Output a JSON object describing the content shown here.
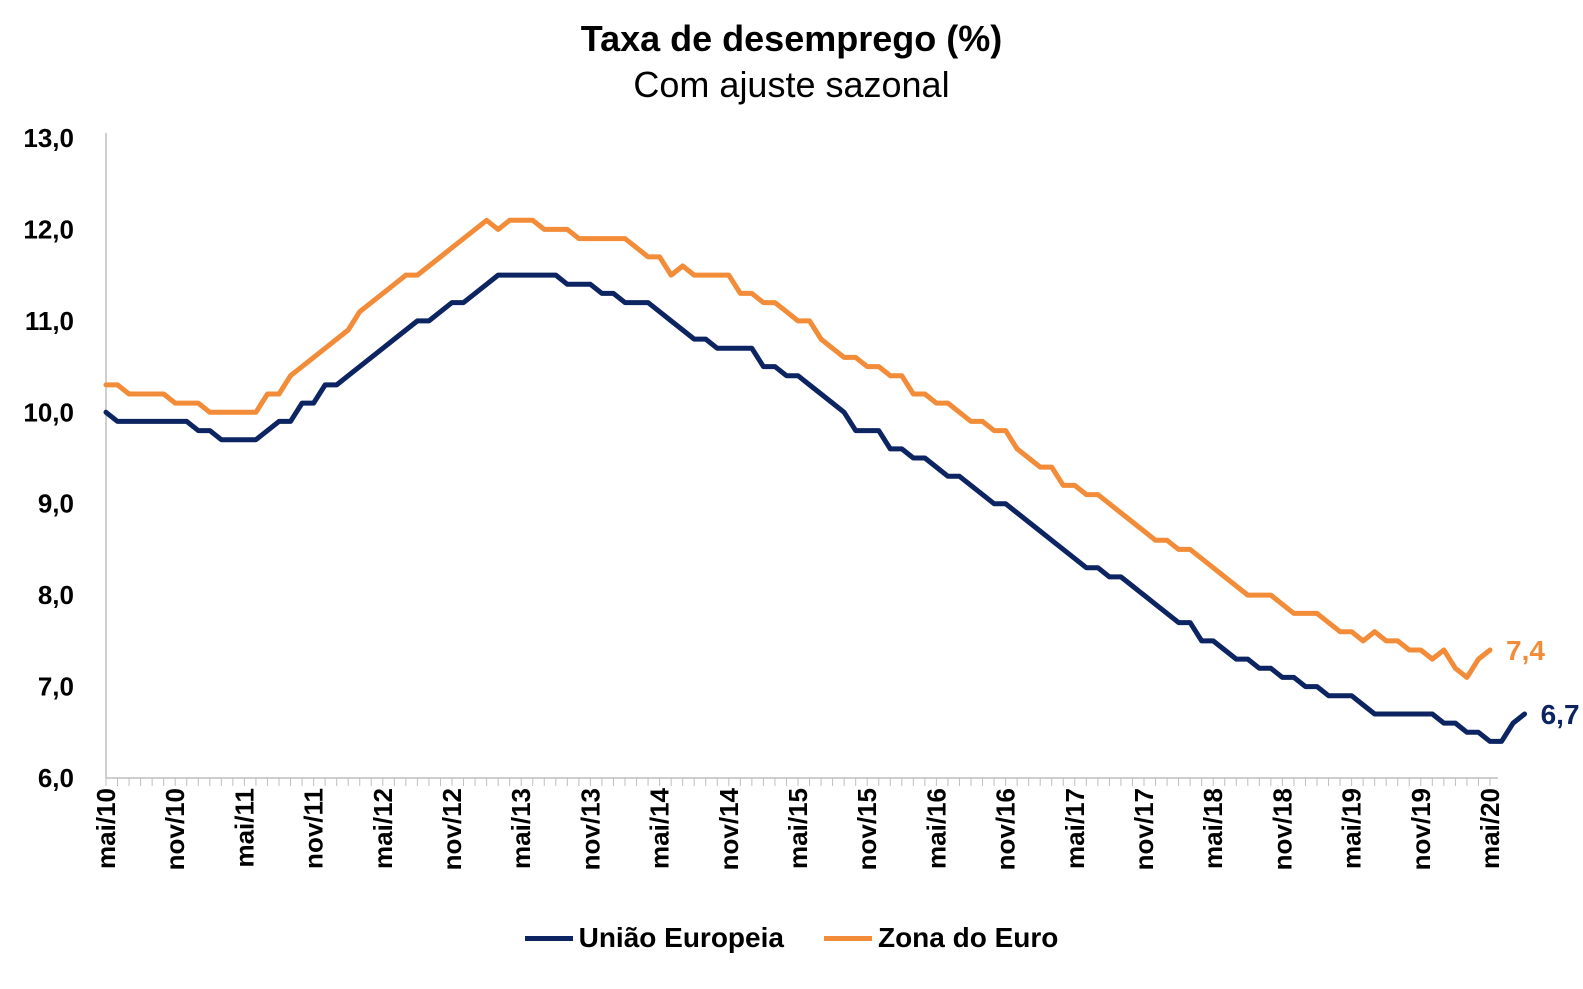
{
  "chart_data": {
    "type": "line",
    "title": "Taxa de desemprego (%)",
    "subtitle": "Com ajuste sazonal",
    "xlabel": "",
    "ylabel": "",
    "ylim": [
      6.0,
      13.0
    ],
    "y_ticks": [
      "13,0",
      "12,0",
      "11,0",
      "10,0",
      "9,0",
      "8,0",
      "7,0",
      "6,0"
    ],
    "y_tick_values": [
      13,
      12,
      11,
      10,
      9,
      8,
      7,
      6
    ],
    "x_ticks": [
      "mai/10",
      "nov/10",
      "mai/11",
      "nov/11",
      "mai/12",
      "nov/12",
      "mai/13",
      "nov/13",
      "mai/14",
      "nov/14",
      "mai/15",
      "nov/15",
      "mai/16",
      "nov/16",
      "mai/17",
      "nov/17",
      "mai/18",
      "nov/18",
      "mai/19",
      "nov/19",
      "mai/20"
    ],
    "x_start": "mai/10",
    "x_end": "mai/20",
    "grid": false,
    "legend_position": "bottom",
    "series": [
      {
        "name": "União Europeia",
        "color": "#0c2461",
        "end_label": "6,7",
        "values": [
          10.0,
          9.9,
          9.9,
          9.9,
          9.9,
          9.9,
          9.9,
          9.9,
          9.8,
          9.8,
          9.7,
          9.7,
          9.7,
          9.7,
          9.8,
          9.9,
          9.9,
          10.1,
          10.1,
          10.3,
          10.3,
          10.4,
          10.5,
          10.6,
          10.7,
          10.8,
          10.9,
          11.0,
          11.0,
          11.1,
          11.2,
          11.2,
          11.3,
          11.4,
          11.5,
          11.5,
          11.5,
          11.5,
          11.5,
          11.5,
          11.4,
          11.4,
          11.4,
          11.3,
          11.3,
          11.2,
          11.2,
          11.2,
          11.1,
          11.0,
          10.9,
          10.8,
          10.8,
          10.7,
          10.7,
          10.7,
          10.7,
          10.5,
          10.5,
          10.4,
          10.4,
          10.3,
          10.2,
          10.1,
          10.0,
          9.8,
          9.8,
          9.8,
          9.6,
          9.6,
          9.5,
          9.5,
          9.4,
          9.3,
          9.3,
          9.2,
          9.1,
          9.0,
          9.0,
          8.9,
          8.8,
          8.7,
          8.6,
          8.5,
          8.4,
          8.3,
          8.3,
          8.2,
          8.2,
          8.1,
          8.0,
          7.9,
          7.8,
          7.7,
          7.7,
          7.5,
          7.5,
          7.4,
          7.3,
          7.3,
          7.2,
          7.2,
          7.1,
          7.1,
          7.0,
          7.0,
          6.9,
          6.9,
          6.9,
          6.8,
          6.7,
          6.7,
          6.7,
          6.7,
          6.7,
          6.7,
          6.6,
          6.6,
          6.5,
          6.5,
          6.4,
          6.4,
          6.6,
          6.7
        ]
      },
      {
        "name": "Zona do Euro",
        "color": "#f28c38",
        "end_label": "7,4",
        "values": [
          10.3,
          10.3,
          10.2,
          10.2,
          10.2,
          10.2,
          10.1,
          10.1,
          10.1,
          10.0,
          10.0,
          10.0,
          10.0,
          10.0,
          10.2,
          10.2,
          10.4,
          10.5,
          10.6,
          10.7,
          10.8,
          10.9,
          11.1,
          11.2,
          11.3,
          11.4,
          11.5,
          11.5,
          11.6,
          11.7,
          11.8,
          11.9,
          12.0,
          12.1,
          12.0,
          12.1,
          12.1,
          12.1,
          12.0,
          12.0,
          12.0,
          11.9,
          11.9,
          11.9,
          11.9,
          11.9,
          11.8,
          11.7,
          11.7,
          11.5,
          11.6,
          11.5,
          11.5,
          11.5,
          11.5,
          11.3,
          11.3,
          11.2,
          11.2,
          11.1,
          11.0,
          11.0,
          10.8,
          10.7,
          10.6,
          10.6,
          10.5,
          10.5,
          10.4,
          10.4,
          10.2,
          10.2,
          10.1,
          10.1,
          10.0,
          9.9,
          9.9,
          9.8,
          9.8,
          9.6,
          9.5,
          9.4,
          9.4,
          9.2,
          9.2,
          9.1,
          9.1,
          9.0,
          8.9,
          8.8,
          8.7,
          8.6,
          8.6,
          8.5,
          8.5,
          8.4,
          8.3,
          8.2,
          8.1,
          8.0,
          8.0,
          8.0,
          7.9,
          7.8,
          7.8,
          7.8,
          7.7,
          7.6,
          7.6,
          7.5,
          7.6,
          7.5,
          7.5,
          7.4,
          7.4,
          7.3,
          7.4,
          7.2,
          7.1,
          7.3,
          7.4
        ]
      }
    ]
  }
}
